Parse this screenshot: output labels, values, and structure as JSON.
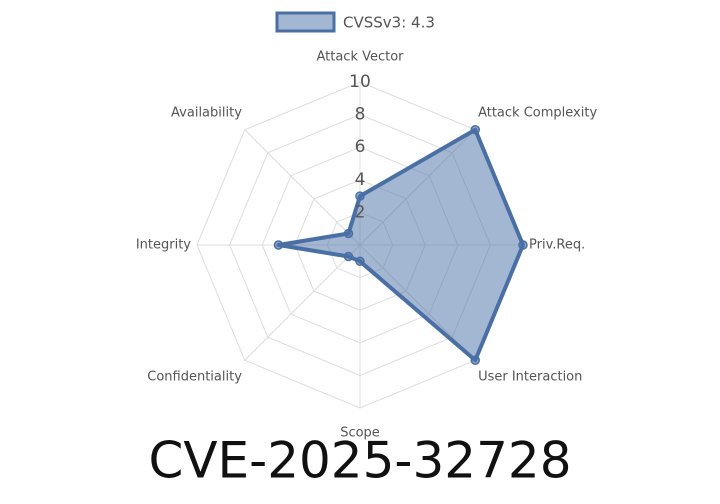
{
  "chart_data": {
    "type": "radar",
    "title": "CVE-2025-32728",
    "categories": [
      "Attack Vector",
      "Attack Complexity",
      "Priv.Req.",
      "User Interaction",
      "Scope",
      "Confidentiality",
      "Integrity",
      "Availability"
    ],
    "series": [
      {
        "name": "CVSSv3: 4.3",
        "color": "#4a6fa5",
        "values": [
          3,
          10,
          10,
          10,
          1,
          1,
          5,
          1
        ]
      }
    ],
    "rlim": [
      0,
      10
    ],
    "rticks": [
      2,
      4,
      6,
      8,
      10
    ],
    "grid": true,
    "legend": "top"
  }
}
